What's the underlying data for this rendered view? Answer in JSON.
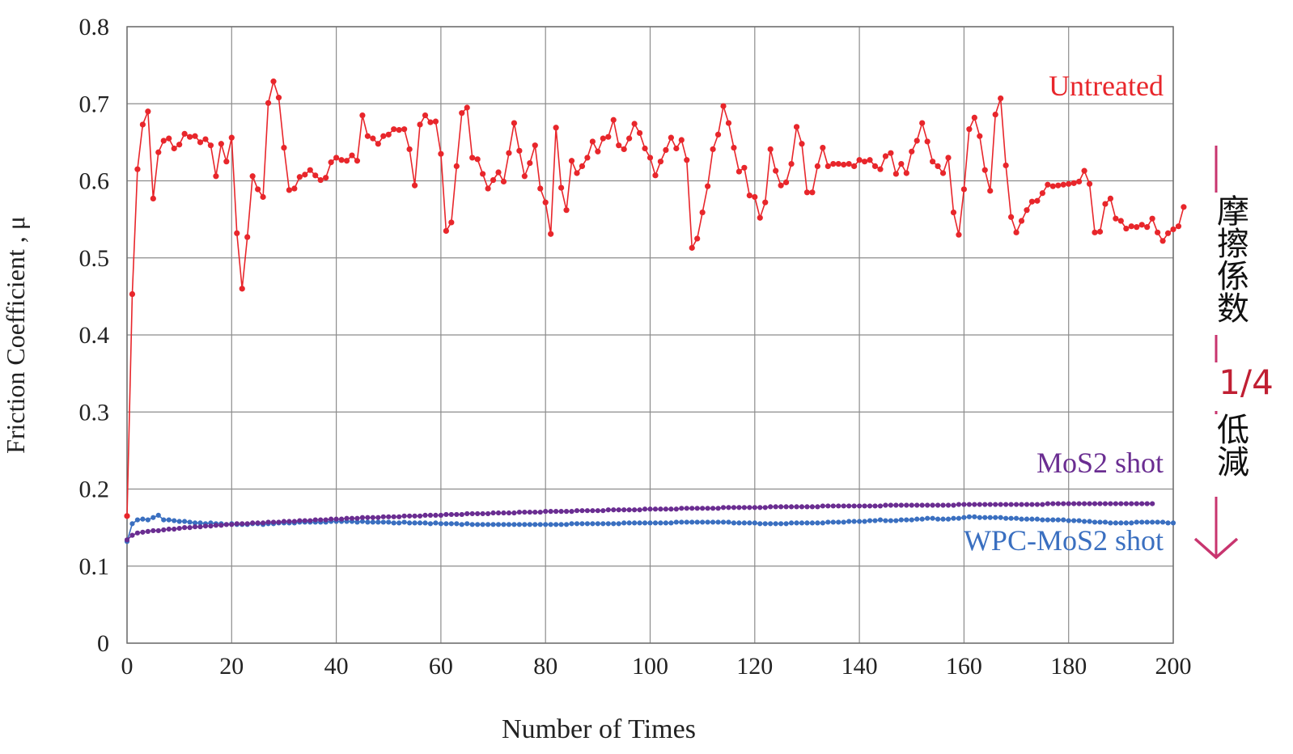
{
  "chart_data": {
    "type": "line",
    "xlabel": "Number of  Times",
    "ylabel": "Friction Coefficient , μ",
    "xlim": [
      0,
      200
    ],
    "ylim": [
      0,
      0.8
    ],
    "x_ticks": [
      "0",
      "20",
      "40",
      "60",
      "80",
      "100",
      "120",
      "140",
      "160",
      "180",
      "200"
    ],
    "y_ticks": [
      "0",
      "0.1",
      "0.2",
      "0.3",
      "0.4",
      "0.5",
      "0.6",
      "0.7",
      "0.8"
    ],
    "grid": true,
    "series": [
      {
        "name": "Untreated",
        "color": "#e8262b",
        "values": [
          0.165,
          0.453,
          0.615,
          0.673,
          0.69,
          0.577,
          0.637,
          0.652,
          0.655,
          0.642,
          0.647,
          0.661,
          0.657,
          0.658,
          0.65,
          0.654,
          0.646,
          0.606,
          0.648,
          0.625,
          0.656,
          0.532,
          0.46,
          0.527,
          0.606,
          0.589,
          0.579,
          0.701,
          0.729,
          0.708,
          0.643,
          0.588,
          0.59,
          0.605,
          0.608,
          0.614,
          0.607,
          0.601,
          0.604,
          0.624,
          0.63,
          0.627,
          0.626,
          0.633,
          0.626,
          0.685,
          0.658,
          0.655,
          0.648,
          0.658,
          0.66,
          0.667,
          0.666,
          0.667,
          0.641,
          0.594,
          0.673,
          0.685,
          0.676,
          0.677,
          0.635,
          0.535,
          0.546,
          0.619,
          0.688,
          0.695,
          0.63,
          0.628,
          0.609,
          0.59,
          0.601,
          0.611,
          0.599,
          0.636,
          0.675,
          0.639,
          0.606,
          0.623,
          0.646,
          0.59,
          0.572,
          0.531,
          0.669,
          0.591,
          0.562,
          0.626,
          0.61,
          0.619,
          0.63,
          0.651,
          0.638,
          0.655,
          0.657,
          0.679,
          0.646,
          0.641,
          0.655,
          0.674,
          0.662,
          0.642,
          0.63,
          0.607,
          0.625,
          0.64,
          0.656,
          0.642,
          0.653,
          0.627,
          0.513,
          0.525,
          0.559,
          0.593,
          0.641,
          0.66,
          0.697,
          0.675,
          0.643,
          0.612,
          0.617,
          0.581,
          0.579,
          0.552,
          0.572,
          0.641,
          0.613,
          0.594,
          0.598,
          0.622,
          0.67,
          0.648,
          0.585,
          0.585,
          0.619,
          0.643,
          0.619,
          0.622,
          0.622,
          0.621,
          0.622,
          0.619,
          0.627,
          0.625,
          0.627,
          0.619,
          0.615,
          0.632,
          0.636,
          0.609,
          0.622,
          0.61,
          0.638,
          0.652,
          0.675,
          0.651,
          0.625,
          0.619,
          0.61,
          0.63,
          0.559,
          0.53,
          0.589,
          0.667,
          0.682,
          0.658,
          0.614,
          0.587,
          0.686,
          0.707,
          0.62,
          0.553,
          0.533,
          0.548,
          0.562,
          0.573,
          0.574,
          0.584,
          0.595,
          0.593,
          0.594,
          0.595,
          0.596,
          0.597,
          0.599,
          0.613,
          0.596,
          0.533,
          0.534,
          0.57,
          0.577,
          0.551,
          0.548,
          0.538,
          0.541,
          0.54,
          0.543,
          0.54,
          0.551,
          0.533,
          0.522,
          0.532,
          0.537,
          0.541,
          0.566
        ]
      },
      {
        "name": "MoS2 shot",
        "color": "#6a2d91",
        "values": [
          0.134,
          0.14,
          0.143,
          0.144,
          0.145,
          0.146,
          0.146,
          0.147,
          0.148,
          0.148,
          0.149,
          0.15,
          0.15,
          0.151,
          0.151,
          0.152,
          0.152,
          0.153,
          0.153,
          0.154,
          0.154,
          0.155,
          0.155,
          0.155,
          0.156,
          0.156,
          0.156,
          0.157,
          0.157,
          0.157,
          0.158,
          0.158,
          0.158,
          0.159,
          0.159,
          0.159,
          0.16,
          0.16,
          0.16,
          0.161,
          0.161,
          0.161,
          0.162,
          0.162,
          0.162,
          0.163,
          0.163,
          0.163,
          0.163,
          0.164,
          0.164,
          0.164,
          0.164,
          0.165,
          0.165,
          0.165,
          0.165,
          0.166,
          0.166,
          0.166,
          0.166,
          0.167,
          0.167,
          0.167,
          0.167,
          0.168,
          0.168,
          0.168,
          0.168,
          0.168,
          0.169,
          0.169,
          0.169,
          0.169,
          0.169,
          0.17,
          0.17,
          0.17,
          0.17,
          0.17,
          0.171,
          0.171,
          0.171,
          0.171,
          0.171,
          0.171,
          0.172,
          0.172,
          0.172,
          0.172,
          0.172,
          0.172,
          0.173,
          0.173,
          0.173,
          0.173,
          0.173,
          0.173,
          0.173,
          0.174,
          0.174,
          0.174,
          0.174,
          0.174,
          0.174,
          0.174,
          0.175,
          0.175,
          0.175,
          0.175,
          0.175,
          0.175,
          0.175,
          0.175,
          0.176,
          0.176,
          0.176,
          0.176,
          0.176,
          0.176,
          0.176,
          0.176,
          0.176,
          0.177,
          0.177,
          0.177,
          0.177,
          0.177,
          0.177,
          0.177,
          0.177,
          0.177,
          0.177,
          0.178,
          0.178,
          0.178,
          0.178,
          0.178,
          0.178,
          0.178,
          0.178,
          0.178,
          0.178,
          0.178,
          0.178,
          0.179,
          0.179,
          0.179,
          0.179,
          0.179,
          0.179,
          0.179,
          0.179,
          0.179,
          0.179,
          0.179,
          0.179,
          0.179,
          0.179,
          0.18,
          0.18,
          0.18,
          0.18,
          0.18,
          0.18,
          0.18,
          0.18,
          0.18,
          0.18,
          0.18,
          0.18,
          0.18,
          0.18,
          0.18,
          0.18,
          0.18,
          0.181,
          0.181,
          0.181,
          0.181,
          0.181,
          0.181,
          0.181,
          0.181,
          0.181,
          0.181,
          0.181,
          0.181,
          0.181,
          0.181,
          0.181,
          0.181,
          0.181,
          0.181,
          0.181,
          0.181,
          0.181
        ]
      },
      {
        "name": "WPC-MoS2 shot",
        "color": "#3a6fc0",
        "values": [
          0.132,
          0.155,
          0.16,
          0.161,
          0.16,
          0.163,
          0.166,
          0.16,
          0.16,
          0.159,
          0.158,
          0.158,
          0.157,
          0.156,
          0.156,
          0.155,
          0.156,
          0.155,
          0.155,
          0.154,
          0.155,
          0.154,
          0.154,
          0.154,
          0.155,
          0.155,
          0.154,
          0.155,
          0.155,
          0.156,
          0.156,
          0.156,
          0.156,
          0.157,
          0.157,
          0.157,
          0.157,
          0.157,
          0.157,
          0.158,
          0.158,
          0.158,
          0.158,
          0.158,
          0.157,
          0.158,
          0.157,
          0.157,
          0.157,
          0.157,
          0.157,
          0.156,
          0.156,
          0.157,
          0.156,
          0.156,
          0.156,
          0.156,
          0.155,
          0.156,
          0.155,
          0.155,
          0.155,
          0.155,
          0.154,
          0.155,
          0.154,
          0.154,
          0.154,
          0.154,
          0.154,
          0.154,
          0.154,
          0.154,
          0.154,
          0.154,
          0.154,
          0.154,
          0.154,
          0.154,
          0.154,
          0.154,
          0.154,
          0.154,
          0.154,
          0.155,
          0.155,
          0.155,
          0.155,
          0.155,
          0.155,
          0.155,
          0.155,
          0.155,
          0.155,
          0.156,
          0.156,
          0.156,
          0.156,
          0.156,
          0.156,
          0.156,
          0.156,
          0.156,
          0.156,
          0.157,
          0.157,
          0.157,
          0.157,
          0.157,
          0.157,
          0.157,
          0.157,
          0.157,
          0.157,
          0.157,
          0.156,
          0.156,
          0.156,
          0.156,
          0.156,
          0.155,
          0.155,
          0.155,
          0.155,
          0.155,
          0.155,
          0.156,
          0.156,
          0.156,
          0.156,
          0.156,
          0.156,
          0.156,
          0.157,
          0.157,
          0.157,
          0.157,
          0.158,
          0.158,
          0.158,
          0.158,
          0.159,
          0.159,
          0.16,
          0.159,
          0.159,
          0.159,
          0.16,
          0.16,
          0.16,
          0.161,
          0.161,
          0.162,
          0.162,
          0.161,
          0.161,
          0.161,
          0.162,
          0.162,
          0.163,
          0.164,
          0.164,
          0.163,
          0.163,
          0.163,
          0.163,
          0.163,
          0.162,
          0.162,
          0.162,
          0.161,
          0.161,
          0.161,
          0.161,
          0.16,
          0.16,
          0.16,
          0.16,
          0.16,
          0.159,
          0.159,
          0.159,
          0.158,
          0.158,
          0.157,
          0.157,
          0.157,
          0.156,
          0.156,
          0.156,
          0.156,
          0.156,
          0.157,
          0.157,
          0.157,
          0.157,
          0.157,
          0.157,
          0.156,
          0.156
        ]
      }
    ]
  },
  "annotation": {
    "text_top": "摩擦係数",
    "ratio": "1/4",
    "text_bottom": "低減",
    "arrow_color": "#c8356f",
    "ratio_color": "#c01f33"
  }
}
